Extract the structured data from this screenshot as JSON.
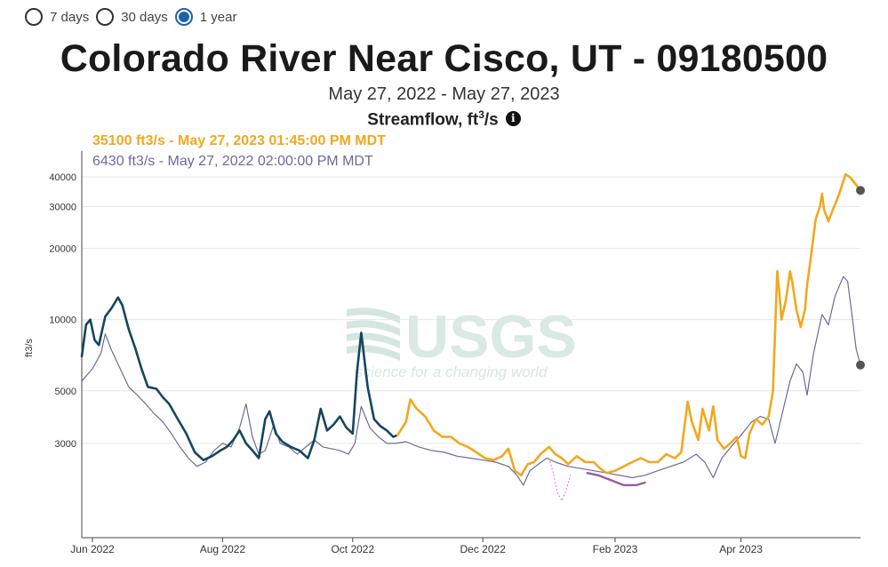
{
  "controls": {
    "options": [
      {
        "label": "7 days",
        "checked": false
      },
      {
        "label": "30 days",
        "checked": false
      },
      {
        "label": "1 year",
        "checked": true
      }
    ]
  },
  "header": {
    "title": "Colorado River Near Cisco, UT - 09180500",
    "subtitle": "May 27, 2022 - May 27, 2023",
    "parameter": "Streamflow, ft",
    "parameter_sup": "3",
    "parameter_suffix": "/s",
    "info_icon": "i"
  },
  "legend": {
    "current": "35100 ft3/s - May 27, 2023 01:45:00 PM MDT",
    "prior": "6430 ft3/s - May 27, 2022 02:00:00 PM MDT"
  },
  "watermark": {
    "text": "USGS",
    "tagline": "science for a changing world"
  },
  "chart_data": {
    "type": "line",
    "ylabel": "ft3/s",
    "yscale": "log",
    "ylim": [
      1200,
      48000
    ],
    "yticks": [
      3000,
      5000,
      10000,
      20000,
      30000,
      40000
    ],
    "xlim": [
      "2022-05-27",
      "2023-05-27"
    ],
    "xticks": [
      {
        "date": "2022-06-01",
        "label": "Jun 2022"
      },
      {
        "date": "2022-08-01",
        "label": "Aug 2022"
      },
      {
        "date": "2022-10-01",
        "label": "Oct 2022"
      },
      {
        "date": "2022-12-01",
        "label": "Dec 2022"
      },
      {
        "date": "2023-02-01",
        "label": "Feb 2023"
      },
      {
        "date": "2023-04-01",
        "label": "Apr 2023"
      }
    ],
    "grid": true,
    "series": [
      {
        "color": "#6e6a9c",
        "width": 1.2,
        "points": [
          [
            "2022-05-27",
            5500
          ],
          [
            "2022-06-01",
            6200
          ],
          [
            "2022-06-05",
            7200
          ],
          [
            "2022-06-07",
            8700
          ],
          [
            "2022-06-10",
            7400
          ],
          [
            "2022-06-14",
            6200
          ],
          [
            "2022-06-18",
            5200
          ],
          [
            "2022-06-22",
            4800
          ],
          [
            "2022-06-26",
            4400
          ],
          [
            "2022-06-30",
            4000
          ],
          [
            "2022-07-04",
            3700
          ],
          [
            "2022-07-08",
            3300
          ],
          [
            "2022-07-12",
            2900
          ],
          [
            "2022-07-16",
            2600
          ],
          [
            "2022-07-20",
            2400
          ],
          [
            "2022-07-24",
            2500
          ],
          [
            "2022-07-28",
            2800
          ],
          [
            "2022-08-01",
            3000
          ],
          [
            "2022-08-05",
            2900
          ],
          [
            "2022-08-09",
            3500
          ],
          [
            "2022-08-12",
            4400
          ],
          [
            "2022-08-15",
            3200
          ],
          [
            "2022-08-18",
            2700
          ],
          [
            "2022-08-21",
            2800
          ],
          [
            "2022-08-25",
            3600
          ],
          [
            "2022-08-28",
            3000
          ],
          [
            "2022-09-01",
            2900
          ],
          [
            "2022-09-05",
            2700
          ],
          [
            "2022-09-09",
            2900
          ],
          [
            "2022-09-13",
            3100
          ],
          [
            "2022-09-17",
            2900
          ],
          [
            "2022-09-21",
            2850
          ],
          [
            "2022-09-25",
            2800
          ],
          [
            "2022-09-29",
            2700
          ],
          [
            "2022-10-02",
            3000
          ],
          [
            "2022-10-05",
            4300
          ],
          [
            "2022-10-09",
            3500
          ],
          [
            "2022-10-13",
            3200
          ],
          [
            "2022-10-17",
            3000
          ],
          [
            "2022-10-21",
            3000
          ],
          [
            "2022-10-26",
            3050
          ],
          [
            "2022-11-01",
            2900
          ],
          [
            "2022-11-07",
            2800
          ],
          [
            "2022-11-13",
            2750
          ],
          [
            "2022-11-19",
            2650
          ],
          [
            "2022-11-25",
            2600
          ],
          [
            "2022-12-01",
            2550
          ],
          [
            "2022-12-07",
            2500
          ],
          [
            "2022-12-13",
            2400
          ],
          [
            "2022-12-17",
            2200
          ],
          [
            "2022-12-20",
            2000
          ],
          [
            "2022-12-23",
            2300
          ],
          [
            "2022-12-27",
            2450
          ],
          [
            "2022-12-31",
            2600
          ],
          [
            "2023-01-04",
            2500
          ],
          [
            "2023-01-10",
            2400
          ],
          [
            "2023-01-16",
            2350
          ],
          [
            "2023-01-22",
            2300
          ],
          [
            "2023-01-28",
            2250
          ],
          [
            "2023-02-03",
            2200
          ],
          [
            "2023-02-09",
            2150
          ],
          [
            "2023-02-15",
            2200
          ],
          [
            "2023-02-21",
            2300
          ],
          [
            "2023-02-27",
            2400
          ],
          [
            "2023-03-05",
            2500
          ],
          [
            "2023-03-11",
            2700
          ],
          [
            "2023-03-15",
            2500
          ],
          [
            "2023-03-19",
            2150
          ],
          [
            "2023-03-23",
            2600
          ],
          [
            "2023-03-28",
            2950
          ],
          [
            "2023-04-01",
            3250
          ],
          [
            "2023-04-06",
            3700
          ],
          [
            "2023-04-10",
            3900
          ],
          [
            "2023-04-14",
            3800
          ],
          [
            "2023-04-17",
            3000
          ],
          [
            "2023-04-20",
            3900
          ],
          [
            "2023-04-24",
            5500
          ],
          [
            "2023-04-27",
            6500
          ],
          [
            "2023-04-30",
            6000
          ],
          [
            "2023-05-02",
            4800
          ],
          [
            "2023-05-05",
            7200
          ],
          [
            "2023-05-09",
            10500
          ],
          [
            "2023-05-12",
            9500
          ],
          [
            "2023-05-15",
            12500
          ],
          [
            "2023-05-19",
            15200
          ],
          [
            "2023-05-21",
            14500
          ],
          [
            "2023-05-23",
            10500
          ],
          [
            "2023-05-25",
            7500
          ],
          [
            "2023-05-27",
            6430
          ]
        ]
      },
      {
        "color": "#15465e",
        "width": 2.6,
        "points": [
          [
            "2022-05-27",
            7000
          ],
          [
            "2022-05-29",
            9500
          ],
          [
            "2022-05-31",
            10000
          ],
          [
            "2022-06-02",
            8200
          ],
          [
            "2022-06-04",
            7800
          ],
          [
            "2022-06-07",
            10300
          ],
          [
            "2022-06-10",
            11200
          ],
          [
            "2022-06-13",
            12400
          ],
          [
            "2022-06-15",
            11500
          ],
          [
            "2022-06-18",
            9100
          ],
          [
            "2022-06-21",
            7600
          ],
          [
            "2022-06-24",
            6200
          ],
          [
            "2022-06-27",
            5200
          ],
          [
            "2022-07-01",
            5100
          ],
          [
            "2022-07-04",
            4700
          ],
          [
            "2022-07-07",
            4400
          ],
          [
            "2022-07-11",
            3800
          ],
          [
            "2022-07-15",
            3300
          ],
          [
            "2022-07-19",
            2750
          ],
          [
            "2022-07-23",
            2550
          ],
          [
            "2022-07-27",
            2650
          ],
          [
            "2022-07-31",
            2800
          ],
          [
            "2022-08-03",
            2900
          ],
          [
            "2022-08-06",
            3100
          ],
          [
            "2022-08-09",
            3400
          ],
          [
            "2022-08-12",
            3000
          ],
          [
            "2022-08-15",
            2800
          ],
          [
            "2022-08-18",
            2600
          ],
          [
            "2022-08-21",
            3800
          ],
          [
            "2022-08-23",
            4100
          ],
          [
            "2022-08-26",
            3300
          ],
          [
            "2022-08-29",
            3050
          ],
          [
            "2022-09-02",
            2900
          ],
          [
            "2022-09-06",
            2800
          ],
          [
            "2022-09-10",
            2600
          ],
          [
            "2022-09-13",
            3100
          ],
          [
            "2022-09-16",
            4200
          ],
          [
            "2022-09-19",
            3400
          ],
          [
            "2022-09-22",
            3600
          ],
          [
            "2022-09-25",
            3900
          ],
          [
            "2022-09-28",
            3500
          ],
          [
            "2022-10-01",
            3300
          ],
          [
            "2022-10-03",
            6000
          ],
          [
            "2022-10-05",
            8800
          ],
          [
            "2022-10-08",
            5200
          ],
          [
            "2022-10-11",
            3800
          ],
          [
            "2022-10-14",
            3550
          ],
          [
            "2022-10-17",
            3400
          ],
          [
            "2022-10-20",
            3200
          ],
          [
            "2022-10-22",
            3250
          ]
        ]
      },
      {
        "color": "#f2a81d",
        "width": 2.6,
        "points": [
          [
            "2022-10-22",
            3250
          ],
          [
            "2022-10-26",
            3700
          ],
          [
            "2022-10-28",
            4600
          ],
          [
            "2022-10-31",
            4200
          ],
          [
            "2022-11-04",
            3900
          ],
          [
            "2022-11-08",
            3400
          ],
          [
            "2022-11-12",
            3200
          ],
          [
            "2022-11-16",
            3200
          ],
          [
            "2022-11-20",
            3000
          ],
          [
            "2022-11-24",
            2900
          ],
          [
            "2022-11-28",
            2750
          ],
          [
            "2022-12-02",
            2600
          ],
          [
            "2022-12-06",
            2550
          ],
          [
            "2022-12-10",
            2650
          ],
          [
            "2022-12-13",
            2850
          ],
          [
            "2022-12-16",
            2300
          ],
          [
            "2022-12-19",
            2200
          ],
          [
            "2022-12-22",
            2450
          ],
          [
            "2022-12-25",
            2500
          ],
          [
            "2022-12-28",
            2700
          ],
          [
            "2023-01-01",
            2900
          ],
          [
            "2023-01-04",
            2700
          ],
          [
            "2023-01-07",
            2600
          ],
          [
            "2023-01-10",
            2450
          ],
          [
            "2023-01-14",
            2650
          ],
          [
            "2023-01-18",
            2500
          ],
          [
            "2023-01-22",
            2500
          ],
          [
            "2023-01-25",
            2350
          ],
          [
            "2023-01-28",
            2250
          ],
          [
            "2023-02-01",
            2300
          ],
          [
            "2023-02-05",
            2400
          ],
          [
            "2023-02-09",
            2500
          ],
          [
            "2023-02-13",
            2600
          ],
          [
            "2023-02-17",
            2500
          ],
          [
            "2023-02-21",
            2500
          ],
          [
            "2023-02-25",
            2700
          ],
          [
            "2023-03-01",
            2600
          ],
          [
            "2023-03-04",
            2750
          ],
          [
            "2023-03-07",
            4500
          ],
          [
            "2023-03-09",
            3700
          ],
          [
            "2023-03-12",
            3100
          ],
          [
            "2023-03-14",
            4200
          ],
          [
            "2023-03-17",
            3400
          ],
          [
            "2023-03-19",
            4300
          ],
          [
            "2023-03-21",
            3100
          ],
          [
            "2023-03-24",
            2850
          ],
          [
            "2023-03-27",
            3000
          ],
          [
            "2023-03-30",
            3200
          ],
          [
            "2023-04-01",
            2650
          ],
          [
            "2023-04-03",
            2600
          ],
          [
            "2023-04-05",
            3300
          ],
          [
            "2023-04-08",
            3800
          ],
          [
            "2023-04-11",
            3600
          ],
          [
            "2023-04-14",
            3900
          ],
          [
            "2023-04-16",
            5000
          ],
          [
            "2023-04-17",
            9000
          ],
          [
            "2023-04-18",
            16000
          ],
          [
            "2023-04-19",
            13000
          ],
          [
            "2023-04-20",
            10000
          ],
          [
            "2023-04-22",
            12000
          ],
          [
            "2023-04-24",
            16000
          ],
          [
            "2023-04-25",
            14500
          ],
          [
            "2023-04-27",
            11000
          ],
          [
            "2023-04-29",
            9300
          ],
          [
            "2023-05-01",
            11000
          ],
          [
            "2023-05-02",
            14000
          ],
          [
            "2023-05-04",
            19000
          ],
          [
            "2023-05-06",
            26500
          ],
          [
            "2023-05-08",
            30000
          ],
          [
            "2023-05-09",
            34000
          ],
          [
            "2023-05-10",
            29000
          ],
          [
            "2023-05-12",
            26000
          ],
          [
            "2023-05-14",
            29000
          ],
          [
            "2023-05-16",
            32000
          ],
          [
            "2023-05-18",
            36000
          ],
          [
            "2023-05-20",
            41000
          ],
          [
            "2023-05-22",
            40000
          ],
          [
            "2023-05-24",
            38000
          ],
          [
            "2023-05-27",
            35100
          ]
        ]
      },
      {
        "color": "#9b59a3",
        "width": 2.4,
        "points": [
          [
            "2023-01-19",
            2250
          ],
          [
            "2023-01-24",
            2200
          ],
          [
            "2023-01-30",
            2100
          ],
          [
            "2023-02-05",
            2000
          ],
          [
            "2023-02-11",
            2000
          ],
          [
            "2023-02-15",
            2050
          ]
        ]
      },
      {
        "color": "#c478c4",
        "width": 1,
        "dash": "1,3",
        "points": [
          [
            "2023-01-01",
            2600
          ],
          [
            "2023-01-03",
            2250
          ],
          [
            "2023-01-05",
            1850
          ],
          [
            "2023-01-07",
            1720
          ],
          [
            "2023-01-09",
            1900
          ],
          [
            "2023-01-11",
            2200
          ]
        ]
      }
    ],
    "markers": [
      {
        "date": "2023-05-27",
        "value": 35100,
        "color": "#555555"
      },
      {
        "date": "2023-05-27",
        "value": 6430,
        "color": "#555555"
      }
    ]
  }
}
